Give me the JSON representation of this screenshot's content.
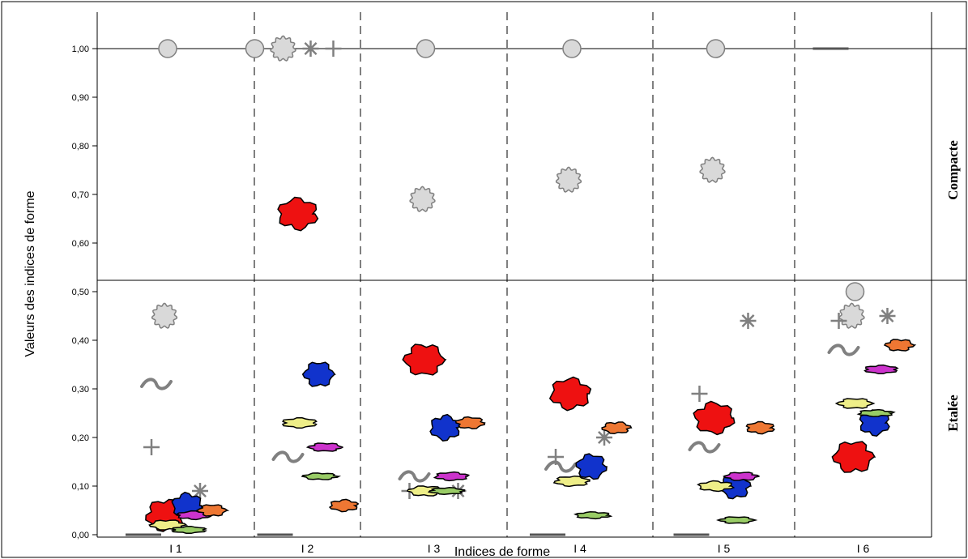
{
  "chart_data": {
    "type": "scatter",
    "xlabel": "Indices de forme",
    "ylabel": "Valeurs des indices de forme",
    "categories": [
      "I 1",
      "I 2",
      "I 3",
      "I 4",
      "I 5",
      "I 6"
    ],
    "y_ticks": [
      "0,00",
      "0,10",
      "0,20",
      "0,30",
      "0,40",
      "0,50",
      "0,60",
      "0,70",
      "0,80",
      "0,90",
      "1,00"
    ],
    "ylim": [
      0,
      1.05
    ],
    "zones": [
      {
        "label": "Compacte",
        "range": [
          0.5,
          1.0
        ]
      },
      {
        "label": "Etalée",
        "range": [
          0.0,
          0.5
        ]
      }
    ],
    "colors": {
      "marker_fill": "#d9d9d9",
      "marker_stroke": "#808080",
      "basin_red": "#ee1111",
      "basin_blue": "#1133cc",
      "basin_orange": "#ee7733",
      "basin_yellow": "#eeee88",
      "basin_magenta": "#cc33cc",
      "basin_green": "#99cc66"
    },
    "series": [
      {
        "shape": "circle",
        "values": [
          1.0,
          1.0,
          1.0,
          1.0,
          1.0,
          0.5
        ]
      },
      {
        "shape": "wavy-circle",
        "values": [
          0.45,
          1.0,
          0.69,
          0.73,
          0.75,
          0.45
        ]
      },
      {
        "shape": "tilde",
        "values": [
          0.31,
          0.16,
          0.12,
          0.14,
          0.18,
          0.38
        ]
      },
      {
        "shape": "plus",
        "values": [
          0.18,
          1.0,
          0.09,
          0.16,
          0.29,
          0.44
        ]
      },
      {
        "shape": "asterisk",
        "values": [
          0.09,
          1.0,
          0.09,
          0.2,
          0.44,
          0.45
        ]
      },
      {
        "shape": "line",
        "values": [
          0.0,
          0.0,
          null,
          0.0,
          0.0,
          1.0
        ]
      },
      {
        "shape": "basin-red",
        "values": [
          0.04,
          0.66,
          0.36,
          0.29,
          0.24,
          0.16
        ]
      },
      {
        "shape": "basin-blue",
        "values": [
          0.06,
          0.33,
          0.22,
          0.14,
          0.1,
          0.23
        ]
      },
      {
        "shape": "basin-yellow",
        "values": [
          0.02,
          0.23,
          0.09,
          0.11,
          0.1,
          0.27
        ]
      },
      {
        "shape": "basin-magenta",
        "values": [
          0.04,
          0.18,
          0.12,
          null,
          0.12,
          0.34
        ]
      },
      {
        "shape": "basin-orange",
        "values": [
          0.05,
          0.06,
          0.23,
          0.22,
          0.22,
          0.39
        ]
      },
      {
        "shape": "basin-green",
        "values": [
          0.01,
          0.12,
          0.09,
          0.04,
          0.03,
          0.25
        ]
      }
    ]
  }
}
